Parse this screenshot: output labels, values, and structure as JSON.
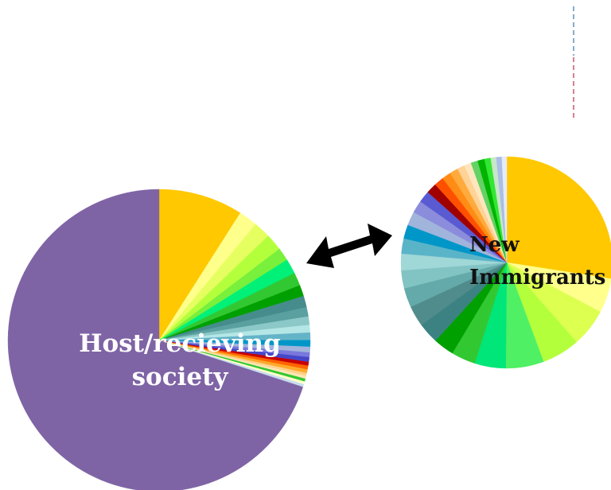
{
  "diagram": {
    "host_label_line1": "Host/recieving",
    "host_label_line2": "society",
    "new_label_line1": "New",
    "new_label_line2": "Immigrants"
  },
  "colors": {
    "host_majority": "#7e64a5",
    "arrow": "#000000",
    "divider_blue": "#5f8fbf",
    "divider_red": "#c25a6a"
  },
  "chart_data": [
    {
      "type": "pie",
      "name": "host-pie",
      "slices": [
        {
          "value": 9.0,
          "color": "#ffc800"
        },
        {
          "value": 2.0,
          "color": "#ffff8c"
        },
        {
          "value": 1.8,
          "color": "#e6ff60"
        },
        {
          "value": 1.8,
          "color": "#b4ff3c"
        },
        {
          "value": 1.4,
          "color": "#78f03c"
        },
        {
          "value": 1.6,
          "color": "#00f078"
        },
        {
          "value": 1.4,
          "color": "#32c832"
        },
        {
          "value": 1.2,
          "color": "#00a000"
        },
        {
          "value": 1.2,
          "color": "#468c8c"
        },
        {
          "value": 1.0,
          "color": "#5aa0a0"
        },
        {
          "value": 0.9,
          "color": "#8cc8c8"
        },
        {
          "value": 0.8,
          "color": "#b4e6e6"
        },
        {
          "value": 0.8,
          "color": "#64b4c8"
        },
        {
          "value": 0.7,
          "color": "#0096c8"
        },
        {
          "value": 0.6,
          "color": "#a0b4dc"
        },
        {
          "value": 0.5,
          "color": "#7878dc"
        },
        {
          "value": 0.5,
          "color": "#4646c8"
        },
        {
          "value": 0.4,
          "color": "#c80000"
        },
        {
          "value": 0.4,
          "color": "#ff6400"
        },
        {
          "value": 0.4,
          "color": "#ffaa28"
        },
        {
          "value": 0.3,
          "color": "#ffd28c"
        },
        {
          "value": 0.3,
          "color": "#ffe6b4"
        },
        {
          "value": 0.3,
          "color": "#32c832"
        },
        {
          "value": 0.3,
          "color": "#ffffc8"
        },
        {
          "value": 0.3,
          "color": "#c8dcf0"
        },
        {
          "value": 69.8,
          "color": "#7e64a5"
        }
      ]
    },
    {
      "type": "pie",
      "name": "new-immigrants-pie",
      "slices": [
        {
          "value": 26.0,
          "color": "#ffc800"
        },
        {
          "value": 5.0,
          "color": "#ffff8c"
        },
        {
          "value": 5.5,
          "color": "#dcff50"
        },
        {
          "value": 5.5,
          "color": "#b4ff3c"
        },
        {
          "value": 5.5,
          "color": "#50f064"
        },
        {
          "value": 4.5,
          "color": "#00e678"
        },
        {
          "value": 3.5,
          "color": "#32c832"
        },
        {
          "value": 3.0,
          "color": "#00a000"
        },
        {
          "value": 3.0,
          "color": "#3c8282"
        },
        {
          "value": 3.0,
          "color": "#508c8c"
        },
        {
          "value": 2.8,
          "color": "#64aaaa"
        },
        {
          "value": 2.6,
          "color": "#82c3c3"
        },
        {
          "value": 2.4,
          "color": "#a0d7d7"
        },
        {
          "value": 2.2,
          "color": "#5ab4c8"
        },
        {
          "value": 2.0,
          "color": "#0096c8"
        },
        {
          "value": 2.0,
          "color": "#a0b4dc"
        },
        {
          "value": 1.8,
          "color": "#8c8cdc"
        },
        {
          "value": 1.7,
          "color": "#5a5ad2"
        },
        {
          "value": 1.5,
          "color": "#a00000"
        },
        {
          "value": 1.4,
          "color": "#ff5000"
        },
        {
          "value": 1.3,
          "color": "#ff8c14"
        },
        {
          "value": 1.2,
          "color": "#ffaa3c"
        },
        {
          "value": 1.1,
          "color": "#ffd296"
        },
        {
          "value": 1.0,
          "color": "#ffe6be"
        },
        {
          "value": 1.0,
          "color": "#64d264"
        },
        {
          "value": 1.0,
          "color": "#00b400"
        },
        {
          "value": 0.9,
          "color": "#32e632"
        },
        {
          "value": 0.8,
          "color": "#c8e6c8"
        },
        {
          "value": 0.8,
          "color": "#aabee6"
        },
        {
          "value": 0.7,
          "color": "#e6ebf5"
        }
      ]
    }
  ]
}
